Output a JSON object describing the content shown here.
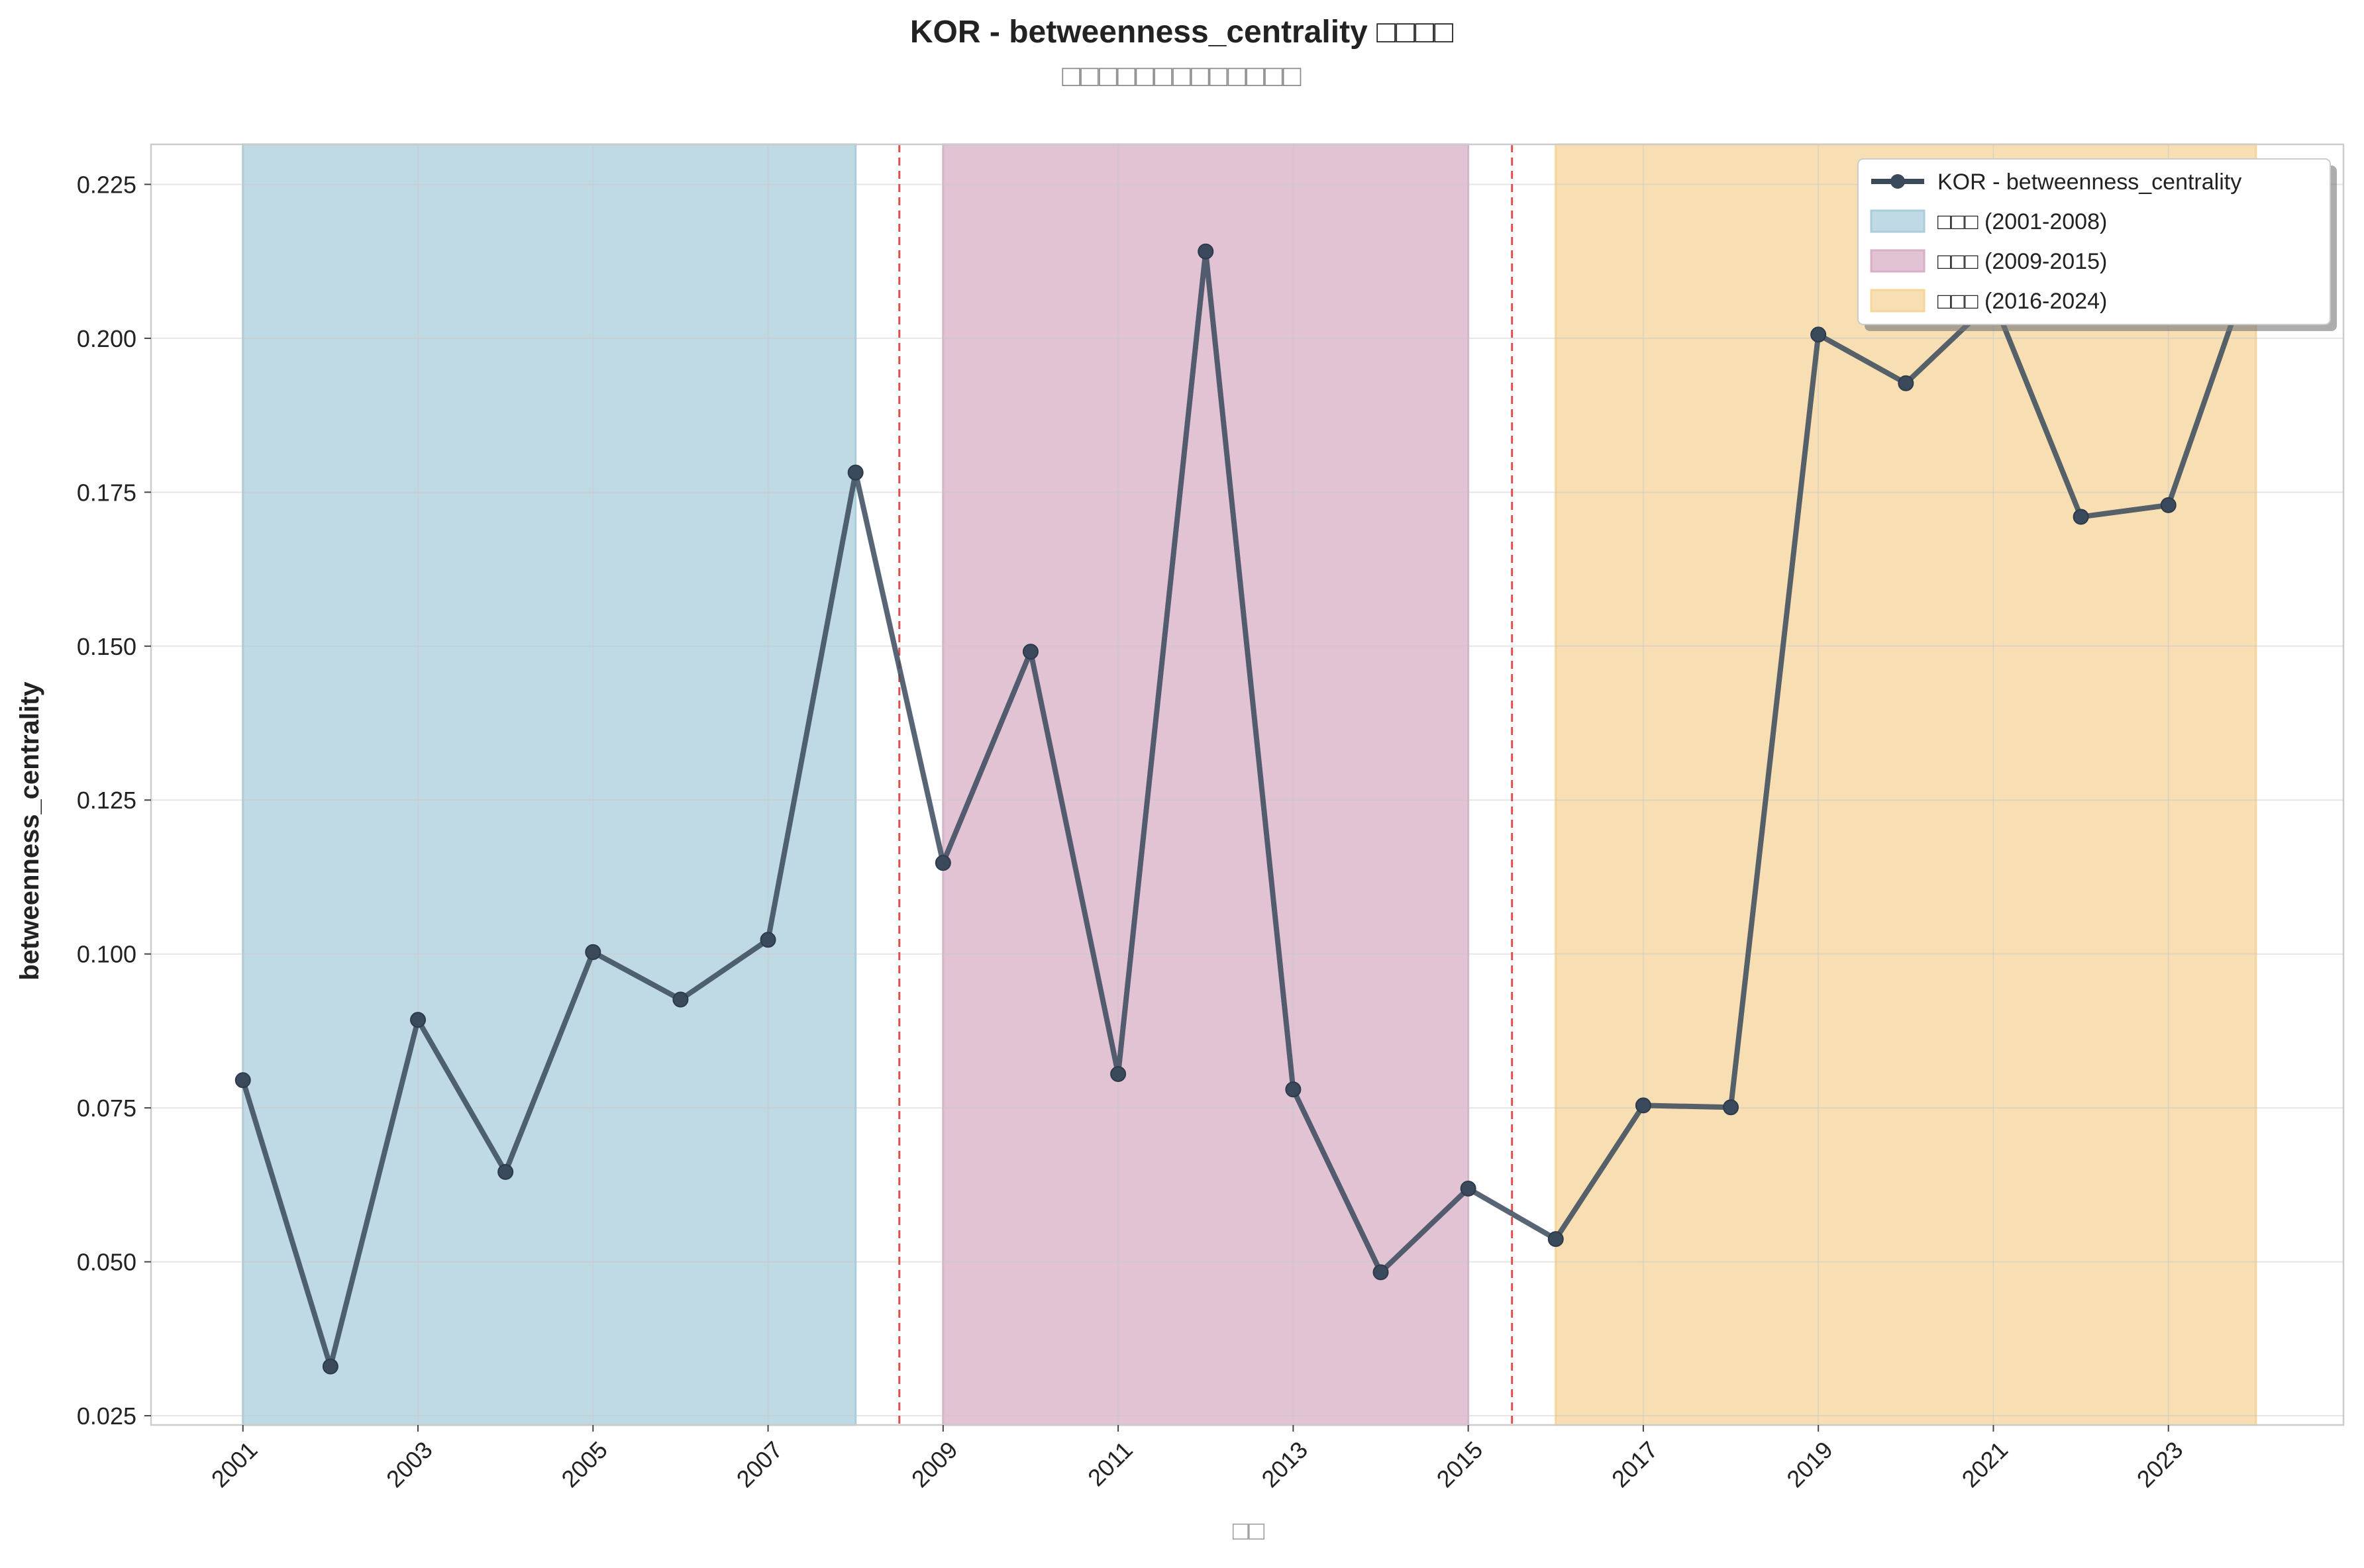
{
  "chart_data": {
    "type": "line",
    "title": "KOR - betweenness_centrality □□□□",
    "subtitle": "□□□□□□□□□□□□□",
    "xlabel": "□□",
    "ylabel": "betweenness_centrality",
    "x": [
      2001,
      2002,
      2003,
      2004,
      2005,
      2006,
      2007,
      2008,
      2009,
      2010,
      2011,
      2012,
      2013,
      2014,
      2015,
      2016,
      2017,
      2018,
      2019,
      2020,
      2021,
      2022,
      2023,
      2024
    ],
    "series": [
      {
        "name": "KOR - betweenness_centrality",
        "color": "#3a4a5c",
        "values": [
          0.0795,
          0.033,
          0.0893,
          0.0646,
          0.1003,
          0.0926,
          0.1023,
          0.1782,
          0.1148,
          0.1491,
          0.0805,
          0.2141,
          0.078,
          0.0483,
          0.0619,
          0.0537,
          0.0754,
          0.0751,
          0.2006,
          0.1927,
          0.2062,
          0.171,
          0.1729,
          0.2138
        ]
      }
    ],
    "periods": [
      {
        "label": "□□□ (2001-2008)",
        "start": 2001,
        "end": 2008,
        "color": "#a9cddb"
      },
      {
        "label": "□□□ (2009-2015)",
        "start": 2009,
        "end": 2015,
        "color": "#d8afc6"
      },
      {
        "label": "□□□ (2016-2024)",
        "start": 2016,
        "end": 2024,
        "color": "#f6d49a"
      }
    ],
    "boundaries": [
      2008.5,
      2015.5
    ],
    "boundary_color": "#dd3c3c",
    "xticks": [
      2001,
      2003,
      2005,
      2007,
      2009,
      2011,
      2013,
      2015,
      2017,
      2019,
      2021,
      2023
    ],
    "yticks": [
      0.025,
      0.05,
      0.075,
      0.1,
      0.125,
      0.15,
      0.175,
      0.2,
      0.225
    ],
    "xlim": [
      1999.95,
      2025.0
    ],
    "ylim": [
      0.0235,
      0.2315
    ],
    "grid": true,
    "legend_position": "top-right"
  }
}
